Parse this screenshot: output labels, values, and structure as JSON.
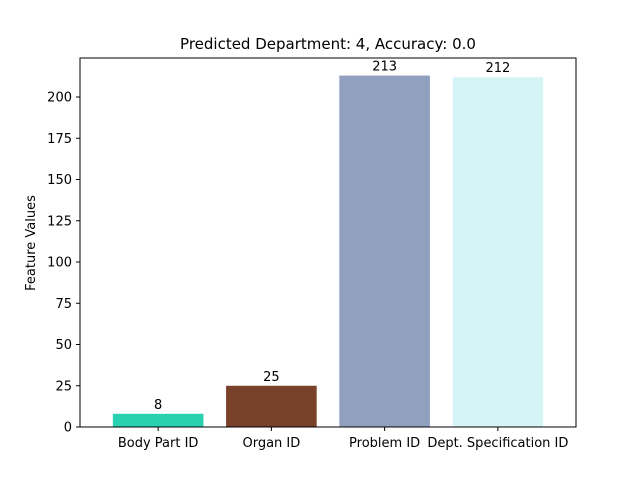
{
  "chart_data": {
    "type": "bar",
    "title": "Predicted Department: 4, Accuracy: 0.0",
    "xlabel": "",
    "ylabel": "Feature Values",
    "categories": [
      "Body Part ID",
      "Organ ID",
      "Problem ID",
      "Dept. Specification ID"
    ],
    "values": [
      8,
      25,
      213,
      212
    ],
    "colors": [
      "#2ad1b0",
      "#7a412a",
      "#92a0bf",
      "#d5f4f6"
    ],
    "ylim": [
      0,
      223.65
    ],
    "yticks": [
      0,
      25,
      50,
      75,
      100,
      125,
      150,
      175,
      200
    ],
    "grid": false,
    "legend": "none"
  }
}
